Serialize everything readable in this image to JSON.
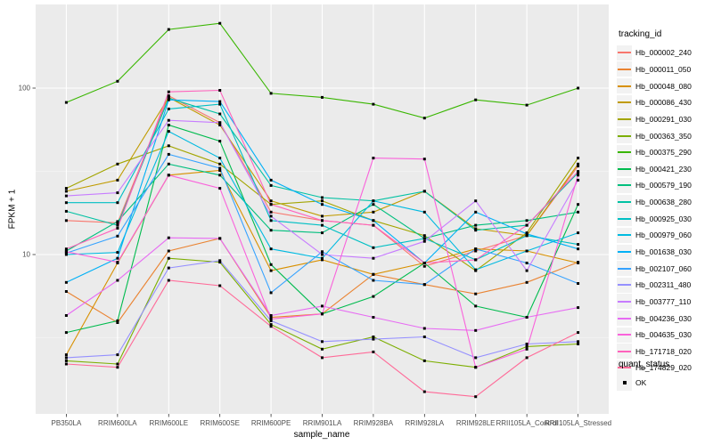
{
  "chart_data": {
    "type": "line",
    "title": "",
    "xlabel": "sample_name",
    "ylabel": "FPKM + 1",
    "y_scale": "log10",
    "ylim": [
      1.05,
      320
    ],
    "yticks": [
      "100",
      "10"
    ],
    "ytick_values": [
      100,
      10
    ],
    "minor_gridline_values": [
      31.62,
      3.162
    ],
    "grid": "on",
    "panel_bg": "#EBEBEB",
    "grid_color": "#FFFFFF",
    "marker": "black-square",
    "legend_position": "right",
    "categories": [
      "PB350LA",
      "RRIM600LA",
      "RRIM600LE",
      "RRIM600SE",
      "RRIM600PE",
      "RRIM901LA",
      "RRIM928BA",
      "RRIM928LA",
      "RRIM928LE",
      "RRII105LA_Control",
      "RRII105LA_Stressed"
    ],
    "series": [
      {
        "name": "Hb_000002_240",
        "color": "#F8766D",
        "values": [
          16,
          15.5,
          90,
          62,
          18,
          16,
          15,
          8.5,
          10.5,
          13,
          34
        ]
      },
      {
        "name": "Hb_000011_050",
        "color": "#EA8331",
        "values": [
          6,
          3.9,
          10.5,
          12.5,
          4.2,
          4.4,
          7.6,
          6.6,
          5.8,
          6.8,
          9
        ]
      },
      {
        "name": "Hb_000048_080",
        "color": "#D89000",
        "values": [
          2.5,
          8.9,
          30,
          32,
          8,
          9.3,
          7.6,
          8.9,
          10.8,
          10.5,
          8.9
        ]
      },
      {
        "name": "Hb_000086_430",
        "color": "#C09B00",
        "values": [
          24,
          28,
          88,
          60,
          21,
          17,
          18,
          24,
          14.3,
          13,
          35
        ]
      },
      {
        "name": "Hb_000291_030",
        "color": "#A3A500",
        "values": [
          25,
          35,
          45,
          35,
          20,
          21,
          16,
          13,
          8,
          13.5,
          38
        ]
      },
      {
        "name": "Hb_000363_350",
        "color": "#7CAE00",
        "values": [
          2.3,
          2.2,
          9.5,
          9,
          3.8,
          2.7,
          3.2,
          2.3,
          2.1,
          2.8,
          2.9
        ]
      },
      {
        "name": "Hb_000375_290",
        "color": "#39B600",
        "values": [
          82,
          110,
          225,
          245,
          93,
          88,
          80,
          66,
          85,
          79,
          100
        ]
      },
      {
        "name": "Hb_000421_230",
        "color": "#00BB4E",
        "values": [
          3.4,
          4,
          60,
          48,
          8.7,
          4.4,
          5.6,
          8.9,
          4.9,
          4.2,
          20
        ]
      },
      {
        "name": "Hb_000579_190",
        "color": "#00BF7D",
        "values": [
          10.5,
          15.8,
          35,
          30,
          14,
          13.5,
          20,
          12.5,
          15,
          16,
          18
        ]
      },
      {
        "name": "Hb_000638_280",
        "color": "#00C1A3",
        "values": [
          18.2,
          15,
          87,
          70,
          26,
          22,
          21,
          24,
          14,
          15,
          31
        ]
      },
      {
        "name": "Hb_000925_030",
        "color": "#00BFC4",
        "values": [
          20.5,
          20.5,
          75,
          80,
          16,
          15,
          11,
          12.5,
          9.3,
          13,
          11.5
        ]
      },
      {
        "name": "Hb_000979_060",
        "color": "#00BAE0",
        "values": [
          10,
          10.3,
          55,
          38,
          10.8,
          9.5,
          21,
          18,
          8.1,
          10.5,
          13.5
        ]
      },
      {
        "name": "Hb_001638_030",
        "color": "#00B0F6",
        "values": [
          6.8,
          9.5,
          85,
          83,
          28,
          20,
          16,
          8.9,
          18,
          13.3,
          10.8
        ]
      },
      {
        "name": "Hb_002107_060",
        "color": "#35A2FF",
        "values": [
          10.2,
          12.9,
          40,
          33,
          5.9,
          10.4,
          7,
          6.6,
          10.8,
          8.9,
          6.7
        ]
      },
      {
        "name": "Hb_002311_480",
        "color": "#9590FF",
        "values": [
          2.4,
          2.5,
          8.3,
          9.2,
          4,
          3,
          3.1,
          3.2,
          2.4,
          2.9,
          3
        ]
      },
      {
        "name": "Hb_003777_110",
        "color": "#C77CFF",
        "values": [
          22.5,
          23.5,
          64,
          62,
          17,
          10,
          9.5,
          12,
          21,
          8,
          28
        ]
      },
      {
        "name": "Hb_004236_030",
        "color": "#E76BF3",
        "values": [
          4.3,
          7,
          12.6,
          12.5,
          4.3,
          4.9,
          4.2,
          3.6,
          3.5,
          4.2,
          4.8
        ]
      },
      {
        "name": "Hb_004635_030",
        "color": "#FA62DB",
        "values": [
          10.4,
          9,
          30,
          25,
          4.1,
          4.4,
          38,
          37.5,
          2.1,
          2.7,
          30
        ]
      },
      {
        "name": "Hb_171718_020",
        "color": "#FF62BC",
        "values": [
          10.8,
          14.4,
          95,
          97,
          20,
          16,
          15,
          8.9,
          9.3,
          15,
          31.6
        ]
      },
      {
        "name": "Hb_174829_020",
        "color": "#FF6A98",
        "values": [
          2.2,
          2.1,
          7,
          6.5,
          3.7,
          2.4,
          2.6,
          1.5,
          1.4,
          2.4,
          3.4
        ]
      }
    ]
  },
  "legend": {
    "title": "tracking_id"
  },
  "legend2": {
    "title": "quant_status",
    "items": [
      {
        "label": "OK"
      }
    ]
  }
}
